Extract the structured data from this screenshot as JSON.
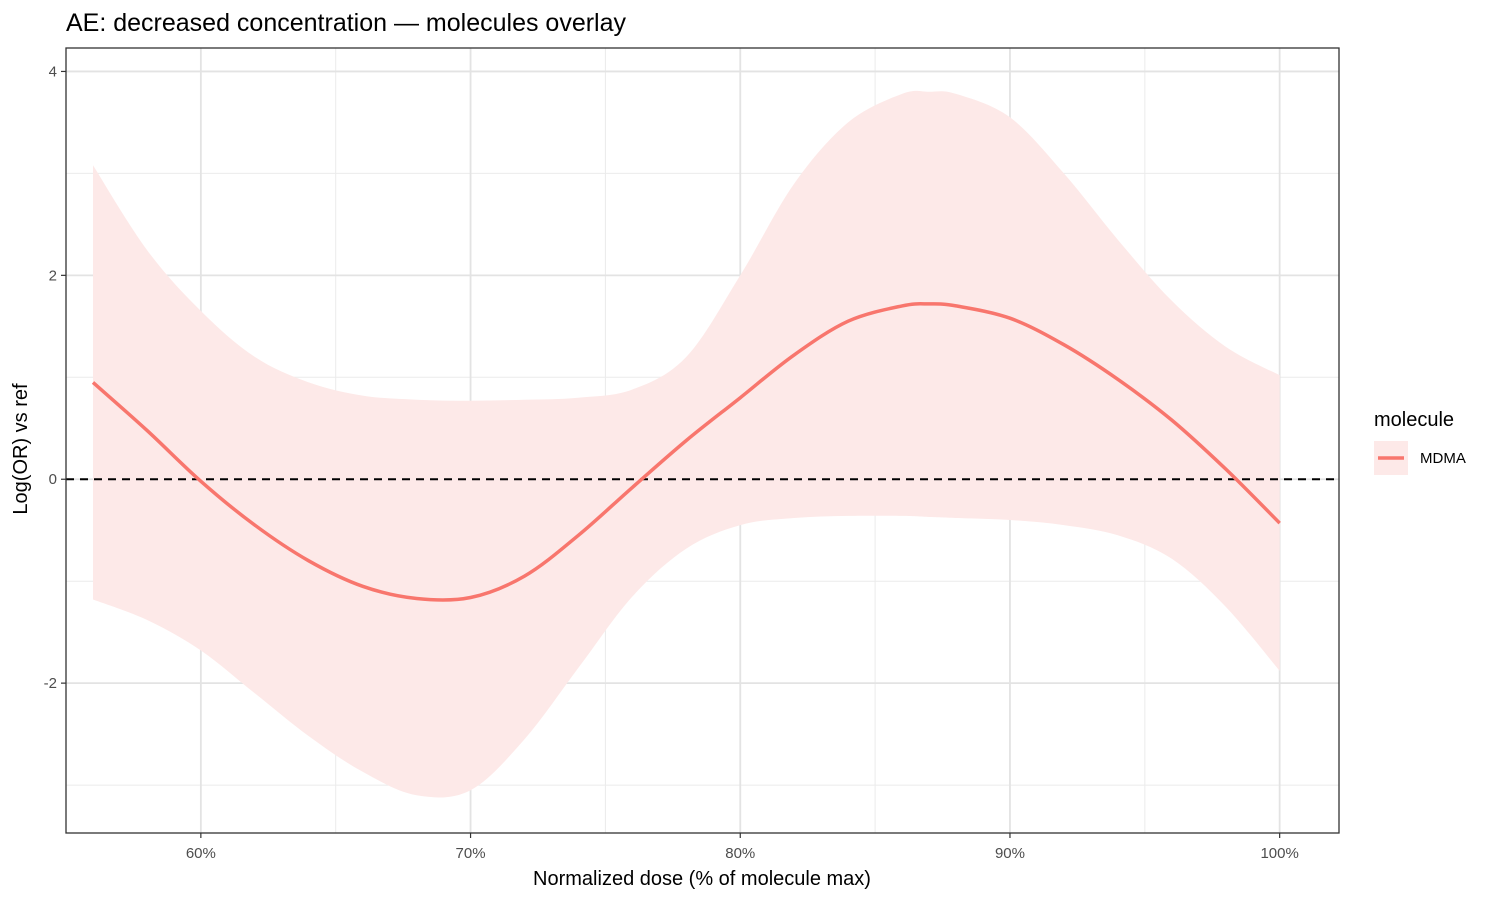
{
  "chart_data": {
    "type": "line",
    "title": "AE: decreased concentration — molecules overlay",
    "xlabel": "Normalized dose (% of molecule max)",
    "ylabel": "Log(OR) vs ref",
    "xlim": [
      55,
      102.2
    ],
    "ylim": [
      -3.47,
      4.23
    ],
    "x_ticks": [
      60,
      70,
      80,
      90,
      100
    ],
    "x_tick_labels": [
      "60%",
      "70%",
      "80%",
      "90%",
      "100%"
    ],
    "y_ticks": [
      -2,
      0,
      2,
      4
    ],
    "y_tick_labels": [
      "-2",
      "0",
      "2",
      "4"
    ],
    "grid": true,
    "reference_line": {
      "y": 0,
      "style": "dashed",
      "color": "#000000"
    },
    "legend": {
      "title": "molecule",
      "position": "right",
      "entries": [
        "MDMA"
      ]
    },
    "series": [
      {
        "name": "MDMA",
        "color": "#f8766d",
        "ribbon_color": "#fde9e8",
        "x": [
          56.0,
          58.0,
          60.0,
          62.0,
          64.0,
          66.0,
          68.0,
          70.0,
          72.0,
          74.0,
          76.0,
          78.0,
          80.0,
          82.0,
          84.0,
          86.0,
          87.0,
          88.0,
          90.0,
          92.0,
          94.0,
          96.0,
          98.0,
          100.0
        ],
        "y": [
          0.95,
          0.48,
          -0.02,
          -0.45,
          -0.8,
          -1.05,
          -1.17,
          -1.16,
          -0.95,
          -0.55,
          -0.08,
          0.38,
          0.8,
          1.22,
          1.55,
          1.7,
          1.72,
          1.7,
          1.58,
          1.32,
          0.98,
          0.58,
          0.1,
          -0.43
        ],
        "lower": [
          -1.18,
          -1.38,
          -1.68,
          -2.1,
          -2.52,
          -2.87,
          -3.1,
          -3.05,
          -2.55,
          -1.85,
          -1.15,
          -0.68,
          -0.45,
          -0.38,
          -0.36,
          -0.36,
          -0.37,
          -0.38,
          -0.4,
          -0.45,
          -0.55,
          -0.78,
          -1.25,
          -1.88
        ],
        "upper": [
          3.08,
          2.25,
          1.65,
          1.2,
          0.95,
          0.82,
          0.78,
          0.77,
          0.78,
          0.8,
          0.88,
          1.2,
          2.0,
          2.9,
          3.5,
          3.78,
          3.8,
          3.78,
          3.55,
          3.0,
          2.35,
          1.75,
          1.3,
          1.02
        ]
      }
    ]
  }
}
